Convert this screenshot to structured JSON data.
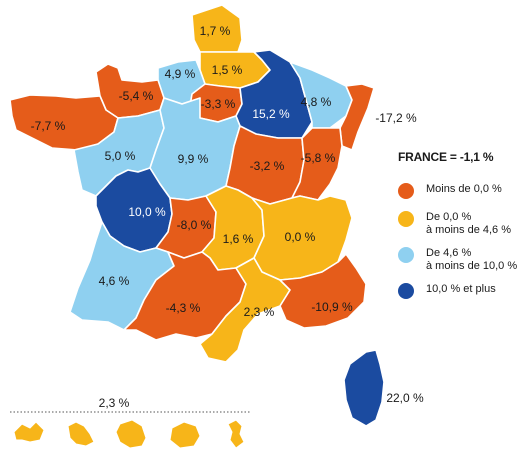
{
  "colors": {
    "negative": "#e55c1a",
    "low": "#f7b519",
    "mid": "#8fd0f0",
    "high": "#1b4ba0",
    "border": "#ffffff"
  },
  "legend": {
    "title": "FRANCE = -1,1 %",
    "items": [
      {
        "label": "Moins de 0,0 %",
        "color": "#e55c1a"
      },
      {
        "label": "De 0,0 %\nà moins de 4,6 %",
        "color": "#f7b519"
      },
      {
        "label": "De 4,6 %\nà moins de 10,0 %",
        "color": "#8fd0f0"
      },
      {
        "label": "10,0 % et plus",
        "color": "#1b4ba0"
      }
    ]
  },
  "regions": [
    {
      "id": "nord",
      "value": "1,7 %",
      "class": "low"
    },
    {
      "id": "picardie",
      "value": "1,5 %",
      "class": "low"
    },
    {
      "id": "haute-normandie",
      "value": "4,9 %",
      "class": "mid"
    },
    {
      "id": "basse-normandie",
      "value": "-5,4 %",
      "class": "negative"
    },
    {
      "id": "bretagne",
      "value": "-7,7 %",
      "class": "negative"
    },
    {
      "id": "ile-de-france",
      "value": "-3,3 %",
      "class": "negative"
    },
    {
      "id": "champagne-ardenne",
      "value": "15,2 %",
      "class": "high"
    },
    {
      "id": "lorraine",
      "value": "4,8 %",
      "class": "mid"
    },
    {
      "id": "alsace",
      "value": "-17,2 %",
      "class": "negative"
    },
    {
      "id": "pays-de-la-loire",
      "value": "5,0 %",
      "class": "mid"
    },
    {
      "id": "centre",
      "value": "9,9 %",
      "class": "mid"
    },
    {
      "id": "bourgogne",
      "value": "-3,2 %",
      "class": "negative"
    },
    {
      "id": "franche-comte",
      "value": "-5,8 %",
      "class": "negative"
    },
    {
      "id": "poitou-charentes",
      "value": "10,0 %",
      "class": "high"
    },
    {
      "id": "limousin",
      "value": "-8,0 %",
      "class": "negative"
    },
    {
      "id": "auvergne",
      "value": "1,6 %",
      "class": "low"
    },
    {
      "id": "rhone-alpes",
      "value": "0,0 %",
      "class": "low"
    },
    {
      "id": "aquitaine",
      "value": "4,6 %",
      "class": "mid"
    },
    {
      "id": "midi-pyrenees",
      "value": "-4,3 %",
      "class": "negative"
    },
    {
      "id": "languedoc-roussillon",
      "value": "2,3 %",
      "class": "low"
    },
    {
      "id": "paca",
      "value": "-10,9 %",
      "class": "negative"
    },
    {
      "id": "corse",
      "value": "22,0 %",
      "class": "high"
    }
  ],
  "overseas": {
    "value": "2,3 %",
    "class": "low"
  }
}
